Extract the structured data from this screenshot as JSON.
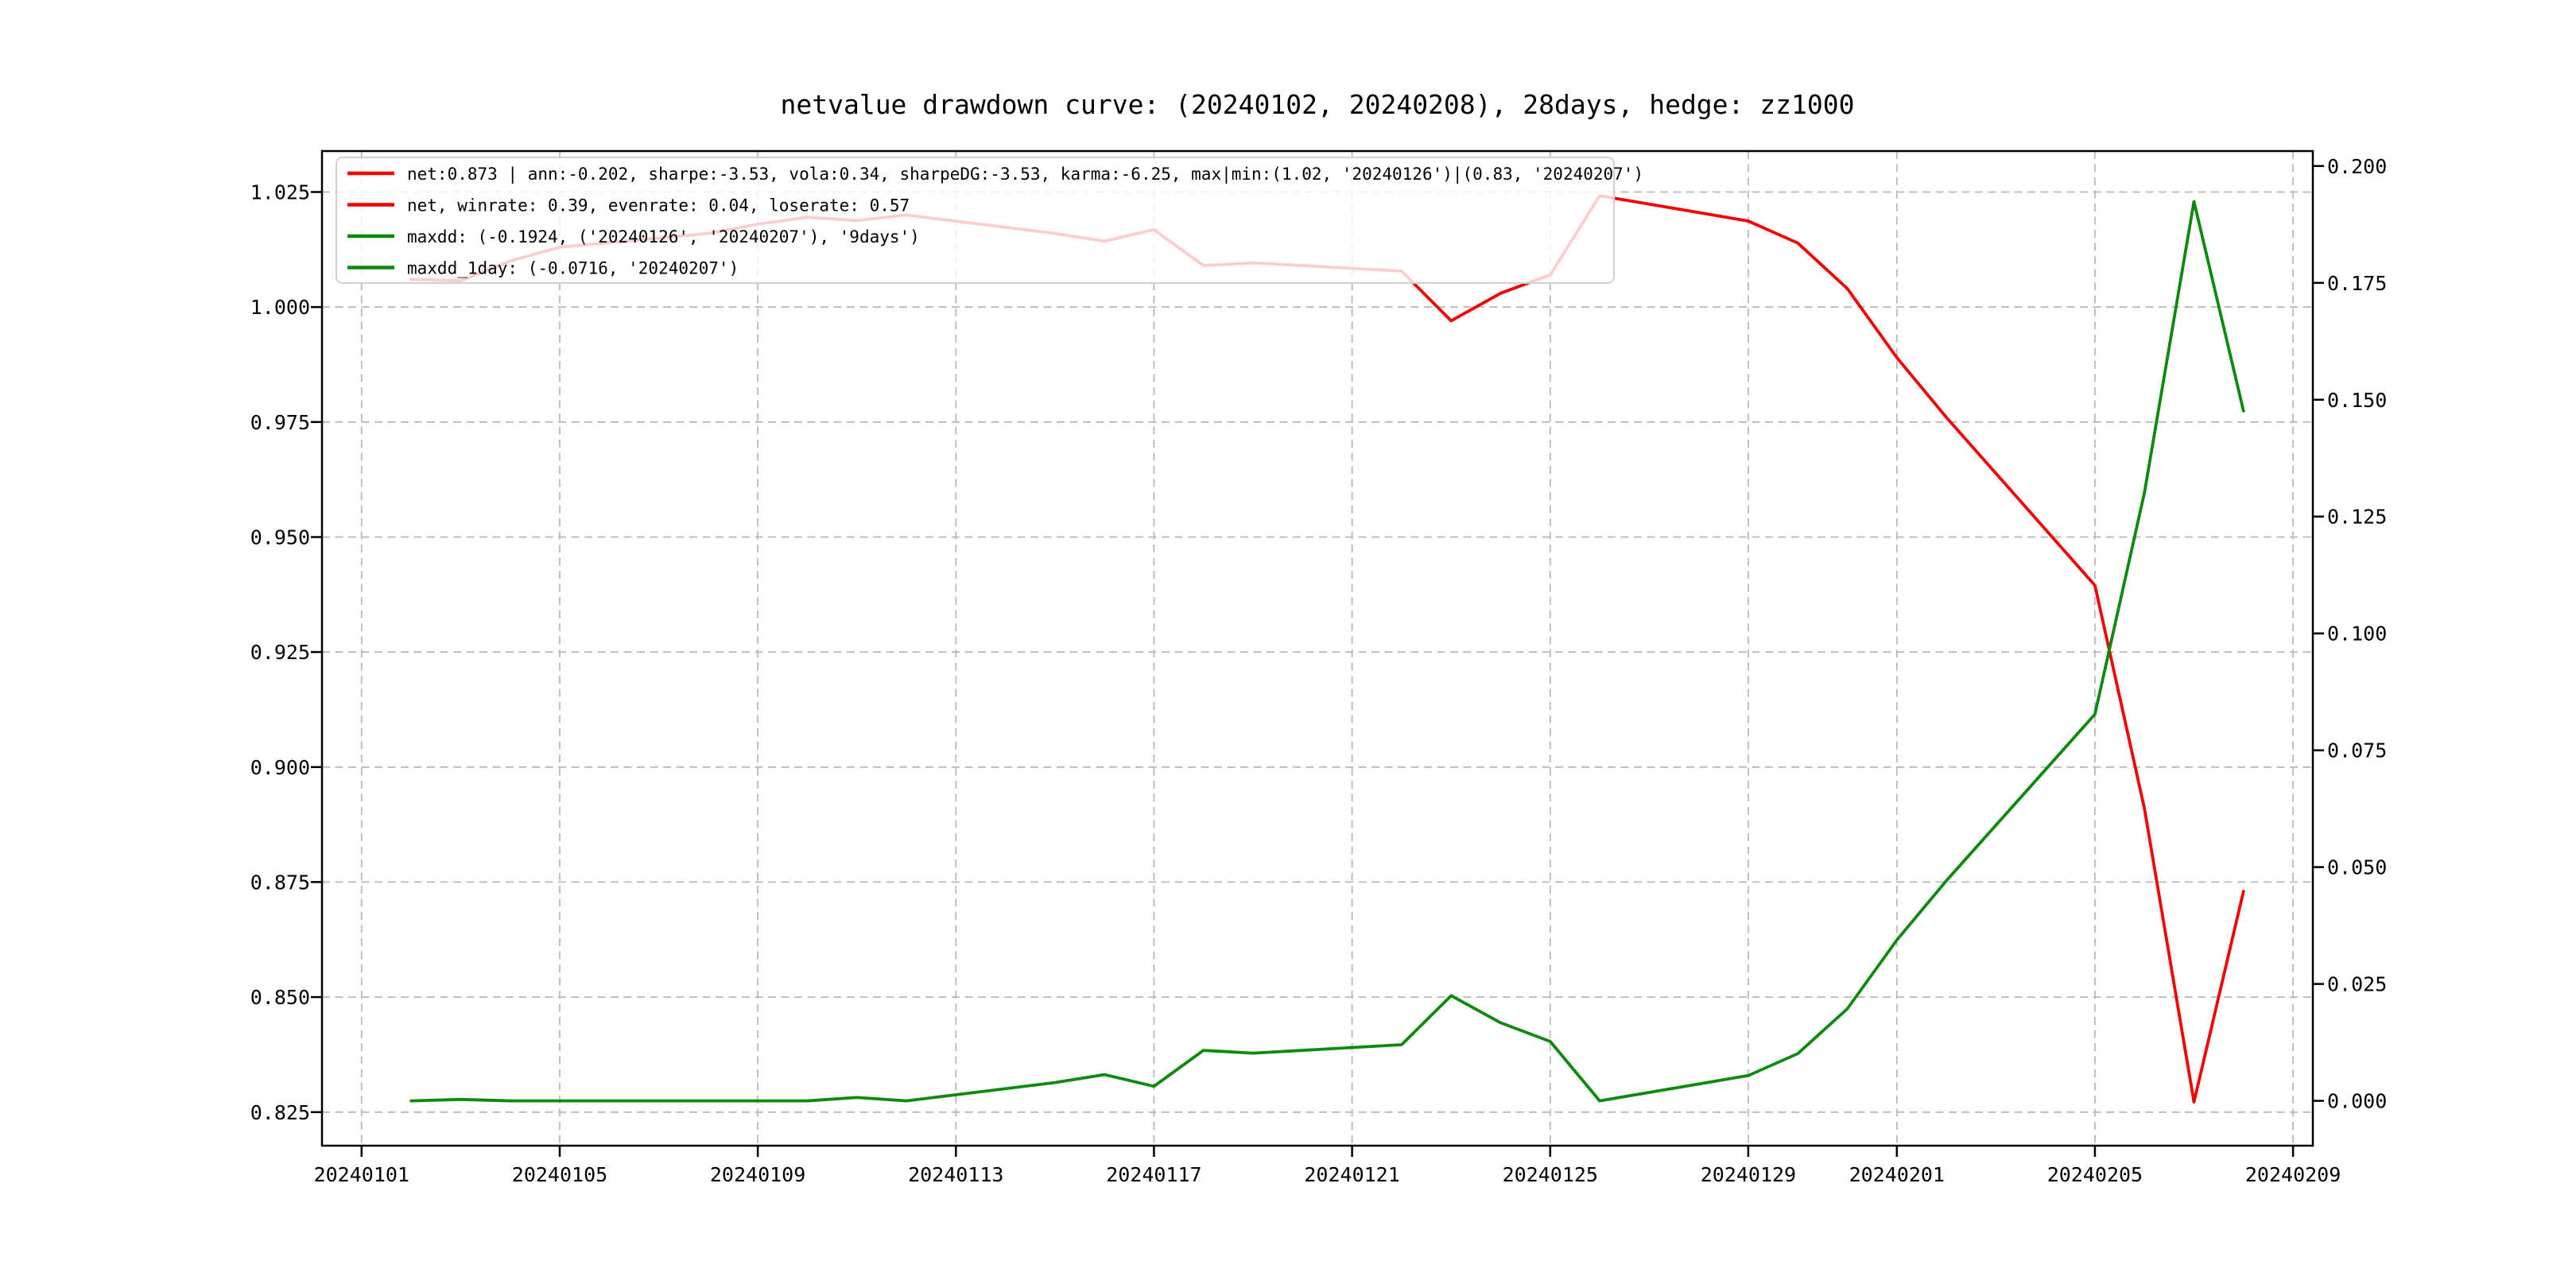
{
  "figure": {
    "background": "#ffffff"
  },
  "chart_data": {
    "type": "line",
    "title": "netvalue drawdown curve: (20240102, 20240208), 28days, hedge: zz1000",
    "x_dates": [
      "20240102",
      "20240103",
      "20240104",
      "20240105",
      "20240108",
      "20240109",
      "20240110",
      "20240111",
      "20240112",
      "20240115",
      "20240116",
      "20240117",
      "20240118",
      "20240119",
      "20240122",
      "20240123",
      "20240124",
      "20240125",
      "20240126",
      "20240129",
      "20240130",
      "20240131",
      "20240201",
      "20240202",
      "20240205",
      "20240206",
      "20240207",
      "20240208"
    ],
    "x_day_offsets": [
      1,
      2,
      3,
      4,
      7,
      8,
      9,
      10,
      11,
      14,
      15,
      16,
      17,
      18,
      21,
      22,
      23,
      24,
      25,
      28,
      29,
      30,
      31,
      32,
      35,
      36,
      37,
      38
    ],
    "series": [
      {
        "name": "net",
        "axis": "left",
        "color": "#f40000",
        "values": [
          1.006,
          1.0057,
          1.01,
          1.013,
          1.016,
          1.018,
          1.0195,
          1.0188,
          1.02,
          1.016,
          1.0143,
          1.0168,
          1.009,
          1.0096,
          1.0078,
          0.997,
          1.003,
          1.007,
          1.0242,
          1.0187,
          1.0139,
          1.004,
          0.989,
          0.976,
          0.9395,
          0.891,
          0.8272,
          0.873
        ]
      },
      {
        "name": "drawdown",
        "axis": "right",
        "color": "#0c8a0c",
        "values": [
          0.0,
          0.0003,
          0.0,
          0.0,
          0.0,
          0.0,
          0.0,
          0.0007,
          0.0,
          0.0039,
          0.0056,
          0.0031,
          0.0108,
          0.0102,
          0.012,
          0.0225,
          0.0167,
          0.0127,
          0.0,
          0.0054,
          0.0101,
          0.0197,
          0.0344,
          0.0471,
          0.0827,
          0.1301,
          0.1924,
          0.1476
        ]
      }
    ],
    "xlim_days": [
      -0.8,
      39.4
    ],
    "ylim_left": [
      0.8177,
      1.0339
    ],
    "ylim_right": [
      -0.0096,
      0.2032
    ],
    "grid": true,
    "legend_position": "upper left",
    "max_point": {
      "value": 1.02,
      "date": "20240126"
    },
    "min_point": {
      "value": 0.83,
      "date": "20240207"
    }
  },
  "axes": {
    "x": {
      "tick_labels": [
        "20240101",
        "20240105",
        "20240109",
        "20240113",
        "20240117",
        "20240121",
        "20240125",
        "20240129",
        "20240201",
        "20240205",
        "20240209"
      ],
      "tick_days": [
        0,
        4,
        8,
        12,
        16,
        20,
        24,
        28,
        31,
        35,
        39
      ]
    },
    "y_left": {
      "tick_labels": [
        "0.825",
        "0.850",
        "0.875",
        "0.900",
        "0.925",
        "0.950",
        "0.975",
        "1.000",
        "1.025"
      ],
      "tick_values": [
        0.825,
        0.85,
        0.875,
        0.9,
        0.925,
        0.95,
        0.975,
        1.0,
        1.025
      ]
    },
    "y_right": {
      "tick_labels": [
        "0.000",
        "0.025",
        "0.050",
        "0.075",
        "0.100",
        "0.125",
        "0.150",
        "0.175",
        "0.200"
      ],
      "tick_values": [
        0.0,
        0.025,
        0.05,
        0.075,
        0.1,
        0.125,
        0.15,
        0.175,
        0.2
      ]
    }
  },
  "legend": {
    "entries": [
      {
        "label": "net:0.873 | ann:-0.202, sharpe:-3.53, vola:0.34, sharpeDG:-3.53, karma:-6.25, max|min:(1.02, '20240126')|(0.83, '20240207')",
        "color": "#f40000"
      },
      {
        "label": "net, winrate: 0.39, evenrate: 0.04, loserate: 0.57",
        "color": "#f40000"
      },
      {
        "label": "maxdd: (-0.1924, ('20240126', '20240207'), '9days')",
        "color": "#0c8a0c"
      },
      {
        "label": "maxdd_1day: (-0.0716, '20240207')",
        "color": "#0c8a0c"
      }
    ]
  },
  "colors": {
    "net_line": "#f40000",
    "drawdown_line": "#0c8a0c",
    "grid_line": "#b9b9b9",
    "spine": "#000000",
    "legend_border": "#d0d0d0",
    "legend_fill_rgba": "255,255,255,0.8"
  }
}
